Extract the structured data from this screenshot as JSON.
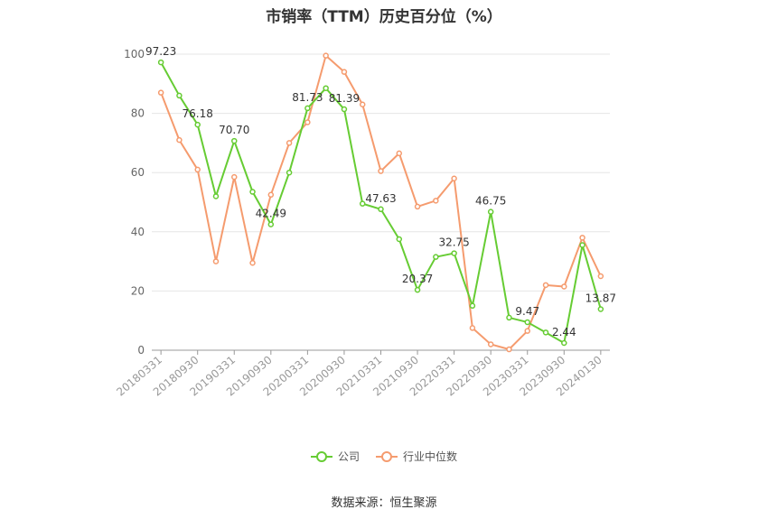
{
  "title": "市销率（TTM）历史百分位（%）",
  "source": "数据来源：恒生聚源",
  "colors": {
    "company": "#66cc33",
    "industry": "#f59b6e",
    "grid": "#e6e6e6",
    "axis": "#999999"
  },
  "chart_data": {
    "type": "line",
    "ylim": [
      0,
      100
    ],
    "yticks": [
      0,
      20,
      40,
      60,
      80,
      100
    ],
    "x_tick_labels": [
      "20180331",
      "20180930",
      "20190331",
      "20190930",
      "20200331",
      "20200930",
      "20210331",
      "20210930",
      "20220331",
      "20220930",
      "20230331",
      "20230930",
      "20240130"
    ],
    "legend_position": "bottom-center",
    "series": [
      {
        "name": "公司",
        "values": [
          97.23,
          86,
          76.18,
          52,
          70.7,
          53.5,
          42.49,
          60,
          81.73,
          88.5,
          81.39,
          49.5,
          47.63,
          37.5,
          20.37,
          31.5,
          32.75,
          15,
          46.75,
          11,
          9.47,
          6,
          2.44,
          35.5,
          13.87
        ],
        "labels": [
          "97.23",
          null,
          "76.18",
          null,
          "70.70",
          null,
          "42.49",
          null,
          "81.73",
          null,
          "81.39",
          null,
          "47.63",
          null,
          "20.37",
          null,
          "32.75",
          null,
          "46.75",
          null,
          "9.47",
          null,
          "2.44",
          null,
          "13.87"
        ]
      },
      {
        "name": "行业中位数",
        "values": [
          87,
          71,
          61,
          30,
          58.5,
          29.5,
          52.5,
          70,
          77,
          99.5,
          94,
          83,
          60.5,
          66.5,
          48.5,
          50.5,
          58,
          7.5,
          2,
          0.3,
          6.5,
          22,
          21.5,
          38,
          25
        ]
      }
    ]
  }
}
